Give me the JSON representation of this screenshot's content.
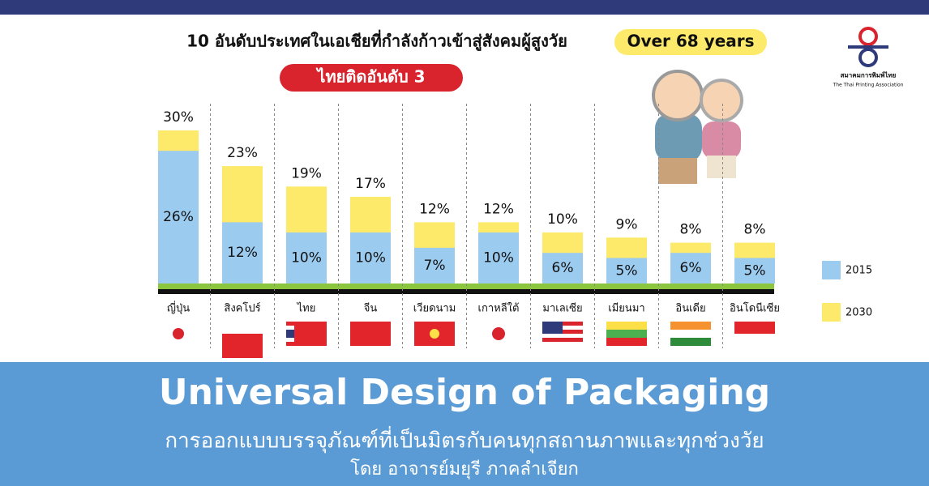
{
  "chart_data": {
    "type": "bar",
    "title": "10 อันดับประเทศในเอเชียที่กำลังก้าวเข้าสู่สังคมผู้สูงวัย",
    "badge": "Over 68 years",
    "subtitle": "ไทยติดอันดับ 3",
    "categories": [
      "ญี่ปุ่น",
      "สิงคโปร์",
      "ไทย",
      "จีน",
      "เวียดนาม",
      "เกาหลีใต้",
      "มาเลเซีย",
      "เมียนมา",
      "อินเดีย",
      "อินโดนีเซีย"
    ],
    "series": [
      {
        "name": "2015",
        "color": "#9ccbf0",
        "values": [
          26,
          12,
          10,
          10,
          7,
          10,
          6,
          5,
          6,
          5
        ],
        "value_labels": [
          "26%",
          "12%",
          "10%",
          "10%",
          "7%",
          "10%",
          "6%",
          "5%",
          "6%",
          "5%"
        ]
      },
      {
        "name": "2030",
        "color": "#fde96a",
        "values": [
          30,
          23,
          19,
          17,
          12,
          12,
          10,
          9,
          8,
          8
        ],
        "value_labels": [
          "30%",
          "23%",
          "19%",
          "17%",
          "12%",
          "12%",
          "10%",
          "9%",
          "8%",
          "8%"
        ]
      }
    ]
  },
  "logo": {
    "name": "สมาคมการพิมพ์ไทย",
    "subname": "The Thai Printing Association"
  },
  "banner": {
    "title": "Universal Design of Packaging",
    "subtitle": "การออกแบบบรรจุภัณฑ์ที่เป็นมิตรกับคนทุกสถานภาพและทุกช่วงวัย",
    "author": "โดย อาจารย์มยุรี ภาคลำเจียก"
  }
}
